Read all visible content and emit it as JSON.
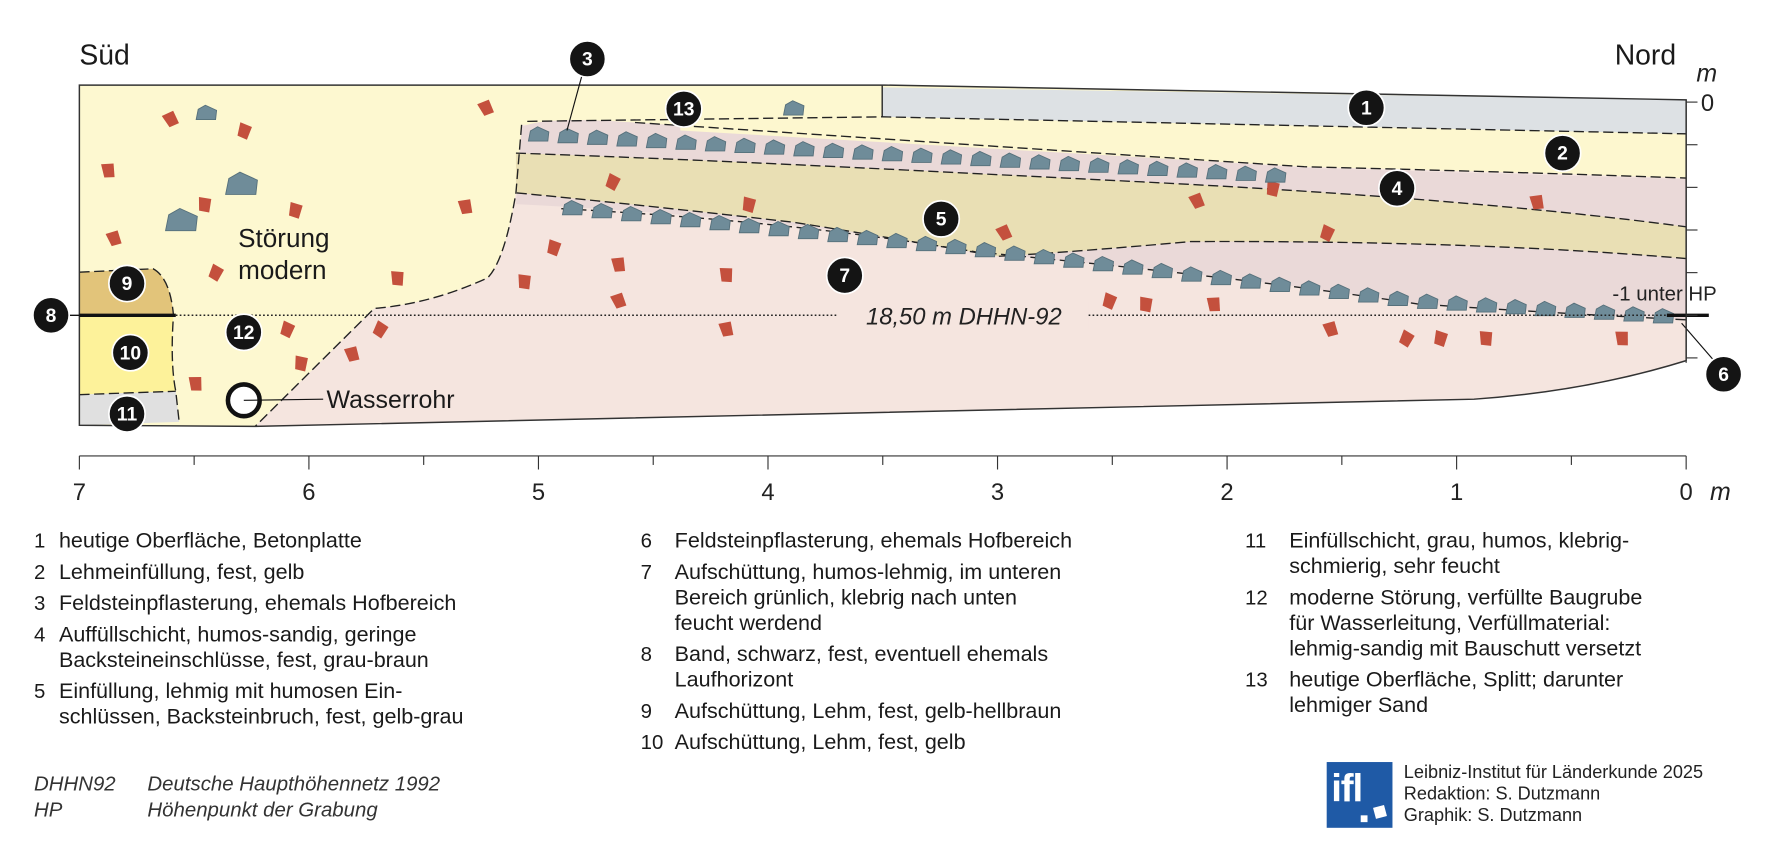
{
  "diagram": {
    "direction_left": "Süd",
    "direction_right": "Nord",
    "label_stoerung": [
      "Störung",
      "modern"
    ],
    "label_wasserrohr": "Wasserrohr",
    "datum_label": "18,50 m DHHN-92",
    "hp_label": "-1 unter HP",
    "right_axis": {
      "unit": "m",
      "zero": "0"
    },
    "bottom_axis": {
      "ticks": [
        "7",
        "6",
        "5",
        "4",
        "3",
        "2",
        "1",
        "0"
      ],
      "unit": "m"
    },
    "badges": [
      "1",
      "2",
      "3",
      "4",
      "5",
      "6",
      "7",
      "8",
      "9",
      "10",
      "11",
      "12",
      "13"
    ],
    "colors": {
      "layer1": "#dde1e4",
      "layer2": "#fdf7cf",
      "layer4": "#ead9d8",
      "layer5": "#e9dfb4",
      "layer7": "#f5e5df",
      "layer9": "#e2c47a",
      "layer10": "#fdf29a",
      "layer11": "#e0e0e0",
      "layer12": "#fdf8d0",
      "stone": "#6f8c99",
      "brick": "#c4503d",
      "logo": "#1f5aa6"
    }
  },
  "legend": {
    "col1": [
      {
        "num": "1",
        "lines": [
          "heutige Oberfläche, Betonplatte"
        ]
      },
      {
        "num": "2",
        "lines": [
          "Lehmeinfüllung, fest, gelb"
        ]
      },
      {
        "num": "3",
        "lines": [
          "Feldsteinpflasterung, ehemals Hofbereich"
        ]
      },
      {
        "num": "4",
        "lines": [
          "Auffüllschicht, humos-sandig, geringe",
          "Backsteineinschlüsse, fest, grau-braun"
        ]
      },
      {
        "num": "5",
        "lines": [
          "Einfüllung, lehmig mit humosen Ein-",
          "schlüssen, Backsteinbruch, fest, gelb-grau"
        ]
      }
    ],
    "col2": [
      {
        "num": "6",
        "lines": [
          "Feldsteinpflasterung, ehemals Hofbereich"
        ]
      },
      {
        "num": "7",
        "lines": [
          "Aufschüttung, humos-lehmig, im unteren",
          "Bereich grünlich, klebrig nach unten",
          "feucht werdend"
        ]
      },
      {
        "num": "8",
        "lines": [
          "Band, schwarz, fest, eventuell ehemals",
          "Laufhorizont"
        ]
      },
      {
        "num": "9",
        "lines": [
          "Aufschüttung, Lehm, fest, gelb-hellbraun"
        ]
      },
      {
        "num": "10",
        "lines": [
          "Aufschüttung, Lehm, fest, gelb"
        ]
      }
    ],
    "col3": [
      {
        "num": "11",
        "lines": [
          "Einfüllschicht, grau, humos, klebrig-",
          "schmierig, sehr feucht"
        ]
      },
      {
        "num": "12",
        "lines": [
          "moderne Störung, verfüllte Baugrube",
          "für Wasserleitung, Verfüllmaterial:",
          "lehmig-sandig mit Bauschutt versetzt"
        ]
      },
      {
        "num": "13",
        "lines": [
          "heutige Oberfläche, Splitt; darunter",
          "lehmiger Sand"
        ]
      }
    ]
  },
  "abbreviations": [
    {
      "abbr": "DHHN92",
      "text": "Deutsche Haupthöhennetz 1992"
    },
    {
      "abbr": "HP",
      "text": "Höhenpunkt der Grabung"
    }
  ],
  "credits": {
    "logo_text": "ifl",
    "lines": [
      "Leibniz-Institut für Länderkunde 2025",
      "Redaktion: S. Dutzmann",
      "Graphik: S. Dutzmann"
    ]
  }
}
